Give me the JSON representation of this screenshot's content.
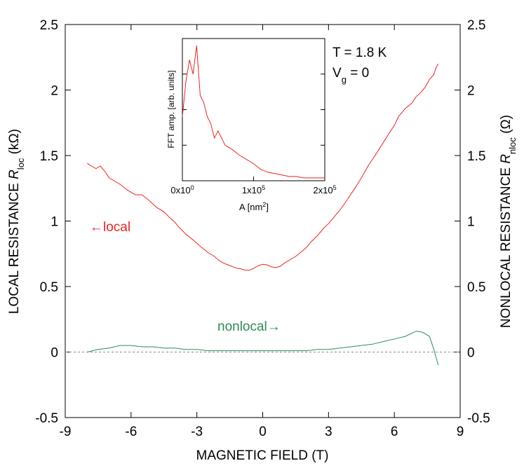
{
  "chart_data": {
    "type": "line",
    "xlabel": "MAGNETIC FIELD (T)",
    "ylabel_left": {
      "main": "LOCAL RESISTANCE ",
      "italic": "R",
      "sub": "loc",
      "unit": " (kΩ)"
    },
    "ylabel_right": {
      "main": "NONLOCAL RESISTANCE ",
      "italic": "R",
      "sub": "nloc",
      "unit": " (Ω)"
    },
    "xlim": [
      -9,
      9
    ],
    "ylim": [
      -0.5,
      2.5
    ],
    "x_ticks": [
      -9,
      -6,
      -3,
      0,
      3,
      6,
      9
    ],
    "y_ticks": [
      -0.5,
      0,
      0.5,
      1,
      1.5,
      2,
      2.5
    ],
    "x_tick_labels": [
      "-9",
      "-6",
      "-3",
      "0",
      "3",
      "6",
      "9"
    ],
    "y_tick_labels": [
      "-0.5",
      "0",
      "0.5",
      "1",
      "1.5",
      "2",
      "2.5"
    ],
    "grid": false,
    "zero_reference_line": true,
    "annotations": {
      "temperature": "T = 1.8 K",
      "gate_main": "V",
      "gate_sub": "g",
      "gate_value": " = 0",
      "local_label": "←local",
      "nonlocal_label": "nonlocal→"
    },
    "colors": {
      "local": "#ee2222",
      "nonlocal": "#2e8b57",
      "axes": "#000000",
      "zero_line": "#888888"
    },
    "series": [
      {
        "key": "local",
        "x": [
          -8.0,
          -7.8,
          -7.6,
          -7.4,
          -7.2,
          -7.0,
          -6.8,
          -6.5,
          -6.2,
          -6.0,
          -5.8,
          -5.5,
          -5.2,
          -5.0,
          -4.8,
          -4.5,
          -4.2,
          -4.0,
          -3.8,
          -3.5,
          -3.2,
          -3.0,
          -2.8,
          -2.5,
          -2.2,
          -2.0,
          -1.8,
          -1.5,
          -1.2,
          -1.0,
          -0.8,
          -0.6,
          -0.4,
          -0.2,
          0.0,
          0.2,
          0.4,
          0.6,
          0.8,
          1.0,
          1.2,
          1.5,
          1.8,
          2.0,
          2.2,
          2.5,
          2.8,
          3.0,
          3.2,
          3.5,
          3.8,
          4.0,
          4.2,
          4.5,
          4.8,
          5.0,
          5.2,
          5.5,
          5.8,
          6.0,
          6.2,
          6.5,
          6.8,
          7.0,
          7.2,
          7.4,
          7.5,
          7.6,
          7.8,
          7.9,
          8.0
        ],
        "y": [
          1.44,
          1.42,
          1.4,
          1.42,
          1.38,
          1.33,
          1.31,
          1.28,
          1.24,
          1.22,
          1.2,
          1.2,
          1.16,
          1.13,
          1.1,
          1.07,
          1.02,
          0.99,
          0.95,
          0.9,
          0.86,
          0.83,
          0.8,
          0.76,
          0.73,
          0.7,
          0.68,
          0.66,
          0.64,
          0.635,
          0.625,
          0.625,
          0.64,
          0.66,
          0.67,
          0.665,
          0.65,
          0.645,
          0.655,
          0.68,
          0.7,
          0.73,
          0.77,
          0.8,
          0.84,
          0.89,
          0.95,
          0.98,
          1.02,
          1.08,
          1.15,
          1.2,
          1.25,
          1.33,
          1.42,
          1.47,
          1.52,
          1.6,
          1.68,
          1.73,
          1.8,
          1.86,
          1.9,
          1.95,
          1.98,
          2.02,
          2.05,
          2.08,
          2.12,
          2.17,
          2.2
        ]
      },
      {
        "key": "nonlocal",
        "x": [
          -8.0,
          -7.5,
          -7.0,
          -6.5,
          -6.0,
          -5.5,
          -5.0,
          -4.5,
          -4.0,
          -3.5,
          -3.0,
          -2.5,
          -2.0,
          -1.5,
          -1.0,
          -0.5,
          0.0,
          0.5,
          1.0,
          1.5,
          2.0,
          2.5,
          3.0,
          3.5,
          4.0,
          4.5,
          5.0,
          5.5,
          6.0,
          6.5,
          7.0,
          7.3,
          7.6,
          7.8,
          8.0
        ],
        "y": [
          0.0,
          0.02,
          0.03,
          0.05,
          0.05,
          0.04,
          0.04,
          0.03,
          0.03,
          0.02,
          0.02,
          0.01,
          0.01,
          0.01,
          0.01,
          0.01,
          0.01,
          0.01,
          0.01,
          0.01,
          0.01,
          0.02,
          0.02,
          0.03,
          0.04,
          0.05,
          0.06,
          0.08,
          0.1,
          0.12,
          0.16,
          0.15,
          0.12,
          0.02,
          -0.1
        ]
      }
    ],
    "inset": {
      "type": "line",
      "xlabel_main": "A [nm",
      "xlabel_sup": "2",
      "xlabel_end": "]",
      "ylabel": "FFT amp. [arb. units]",
      "xlim": [
        0,
        200000
      ],
      "x_ticks": [
        0,
        100000,
        200000
      ],
      "x_tick_labels": [
        {
          "mantissa": "0x10",
          "exp": "0"
        },
        {
          "mantissa": "1x10",
          "exp": "5"
        },
        {
          "mantissa": "2x10",
          "exp": "5"
        }
      ],
      "ylim": [
        0,
        1
      ],
      "series_color": "#ee2222",
      "x": [
        0,
        5000,
        10000,
        15000,
        20000,
        25000,
        30000,
        35000,
        40000,
        45000,
        50000,
        60000,
        70000,
        80000,
        90000,
        100000,
        110000,
        120000,
        130000,
        140000,
        150000,
        160000,
        170000,
        180000,
        190000,
        200000
      ],
      "y": [
        0.45,
        0.7,
        0.85,
        0.75,
        0.95,
        0.6,
        0.55,
        0.45,
        0.4,
        0.3,
        0.35,
        0.25,
        0.22,
        0.18,
        0.15,
        0.12,
        0.08,
        0.06,
        0.05,
        0.04,
        0.03,
        0.03,
        0.02,
        0.02,
        0.02,
        0.02
      ]
    }
  }
}
